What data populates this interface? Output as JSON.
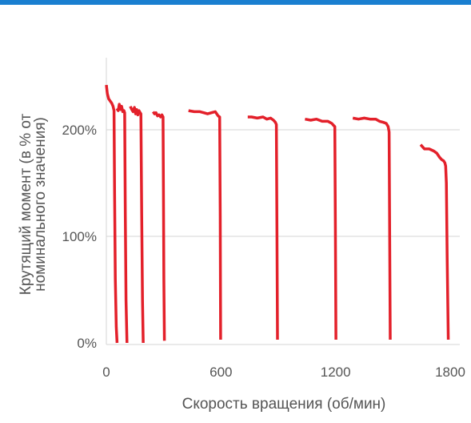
{
  "chart_data": {
    "type": "line",
    "title": "",
    "xlabel": "Скорость вращения (об/мин)",
    "ylabel_lines": [
      "Крутящий момент (в % от",
      "номинального значения)"
    ],
    "xlim": [
      0,
      1800
    ],
    "ylim": [
      0,
      250
    ],
    "x_ticks": [
      0,
      600,
      1200,
      1800
    ],
    "y_ticks": [
      0,
      100,
      200
    ],
    "y_tick_labels": [
      "0%",
      "100%",
      "200%"
    ],
    "grid": {
      "y": true,
      "x": false
    },
    "legend": "none",
    "line_color": "#e3202a",
    "series": [
      {
        "x": [
          0,
          5,
          12,
          20,
          28,
          35,
          40,
          43,
          47,
          52,
          56
        ],
        "y": [
          242,
          234,
          229,
          227,
          225,
          222,
          218,
          140,
          60,
          15,
          0
        ]
      },
      {
        "x": [
          55,
          62,
          68,
          74,
          80,
          86,
          92,
          96,
          99,
          103,
          108
        ],
        "y": [
          220,
          218,
          224,
          219,
          222,
          217,
          218,
          216,
          120,
          40,
          0
        ]
      },
      {
        "x": [
          125,
          133,
          140,
          147,
          153,
          159,
          165,
          171,
          177,
          181,
          185,
          189,
          193
        ],
        "y": [
          222,
          219,
          217,
          221,
          215,
          219,
          214,
          218,
          216,
          215,
          120,
          40,
          0
        ]
      },
      {
        "x": [
          245,
          252,
          260,
          268,
          276,
          284,
          291,
          297,
          299,
          301,
          304
        ],
        "y": [
          217,
          215,
          216,
          213,
          214,
          212,
          214,
          212,
          140,
          60,
          2
        ]
      },
      {
        "x": [
          430,
          460,
          490,
          510,
          530,
          550,
          570,
          585,
          593,
          596,
          598
        ],
        "y": [
          218,
          217,
          217,
          216,
          215,
          216,
          217,
          213,
          212,
          120,
          3
        ]
      },
      {
        "x": [
          740,
          760,
          790,
          820,
          840,
          860,
          875,
          885,
          890,
          893,
          896
        ],
        "y": [
          212,
          212,
          211,
          212,
          210,
          211,
          209,
          207,
          205,
          110,
          3
        ]
      },
      {
        "x": [
          1040,
          1070,
          1100,
          1130,
          1160,
          1180,
          1190,
          1196,
          1199,
          1202
        ],
        "y": [
          210,
          209,
          210,
          208,
          208,
          206,
          204,
          203,
          110,
          3
        ]
      },
      {
        "x": [
          1290,
          1320,
          1350,
          1380,
          1410,
          1430,
          1450,
          1465,
          1475,
          1480,
          1483,
          1486
        ],
        "y": [
          211,
          210,
          211,
          210,
          210,
          208,
          207,
          206,
          203,
          198,
          100,
          3
        ]
      },
      {
        "x": [
          1645,
          1665,
          1690,
          1715,
          1730,
          1745,
          1755,
          1765,
          1772,
          1776,
          1780,
          1784,
          1790
        ],
        "y": [
          186,
          182,
          182,
          180,
          178,
          174,
          172,
          171,
          169,
          166,
          150,
          80,
          3
        ]
      }
    ]
  }
}
